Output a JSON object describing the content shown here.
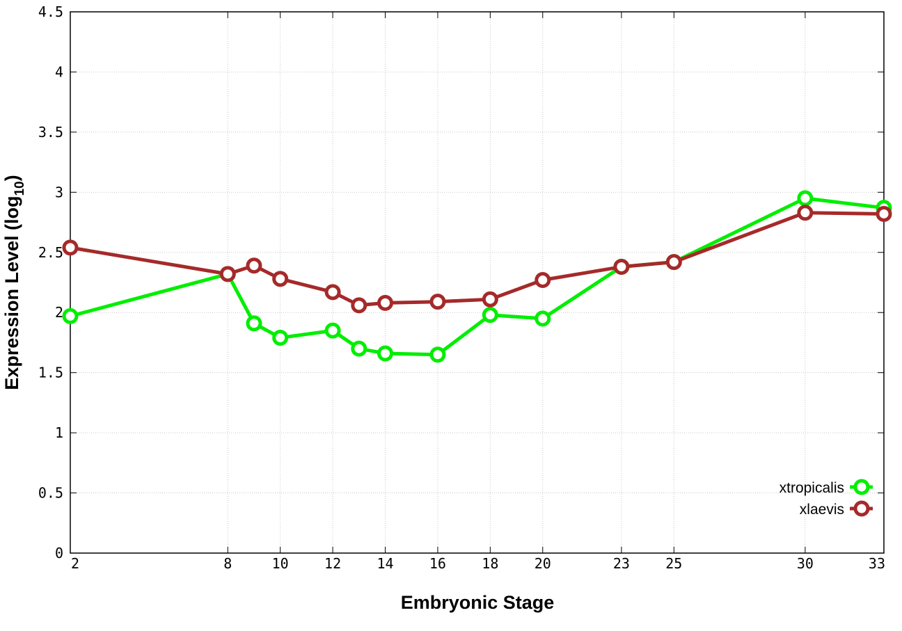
{
  "chart_data": {
    "type": "line",
    "title": "",
    "xlabel": "Embryonic Stage",
    "ylabel_main": "Expression Level (log",
    "ylabel_sub": "10",
    "ylabel_close": ")",
    "x": [
      2,
      8,
      9,
      10,
      12,
      13,
      14,
      16,
      18,
      20,
      23,
      25,
      30,
      33
    ],
    "xticks": [
      2,
      8,
      10,
      12,
      14,
      16,
      18,
      20,
      23,
      25,
      30,
      33
    ],
    "xtick_labels": [
      "2",
      "8",
      "10",
      "12",
      "14",
      "16",
      "18",
      "20",
      "23",
      "25",
      "30",
      "33"
    ],
    "xlim": [
      2,
      33
    ],
    "yticks": [
      0,
      0.5,
      1,
      1.5,
      2,
      2.5,
      3,
      3.5,
      4,
      4.5
    ],
    "ytick_labels": [
      "0",
      "0.5",
      "1",
      "1.5",
      "2",
      "2.5",
      "3",
      "3.5",
      "4",
      "4.5"
    ],
    "ylim": [
      0,
      4.5
    ],
    "grid": true,
    "legend_position": "bottom-right",
    "series": [
      {
        "name": "xtropicalis",
        "color": "#00ee00",
        "values": [
          1.97,
          2.32,
          1.91,
          1.79,
          1.85,
          1.7,
          1.66,
          1.65,
          1.98,
          1.95,
          2.38,
          2.42,
          2.95,
          2.87
        ]
      },
      {
        "name": "xlaevis",
        "color": "#a52a2a",
        "values": [
          2.54,
          2.32,
          2.39,
          2.28,
          2.17,
          2.06,
          2.08,
          2.09,
          2.11,
          2.27,
          2.38,
          2.42,
          2.83,
          2.82
        ]
      }
    ]
  }
}
